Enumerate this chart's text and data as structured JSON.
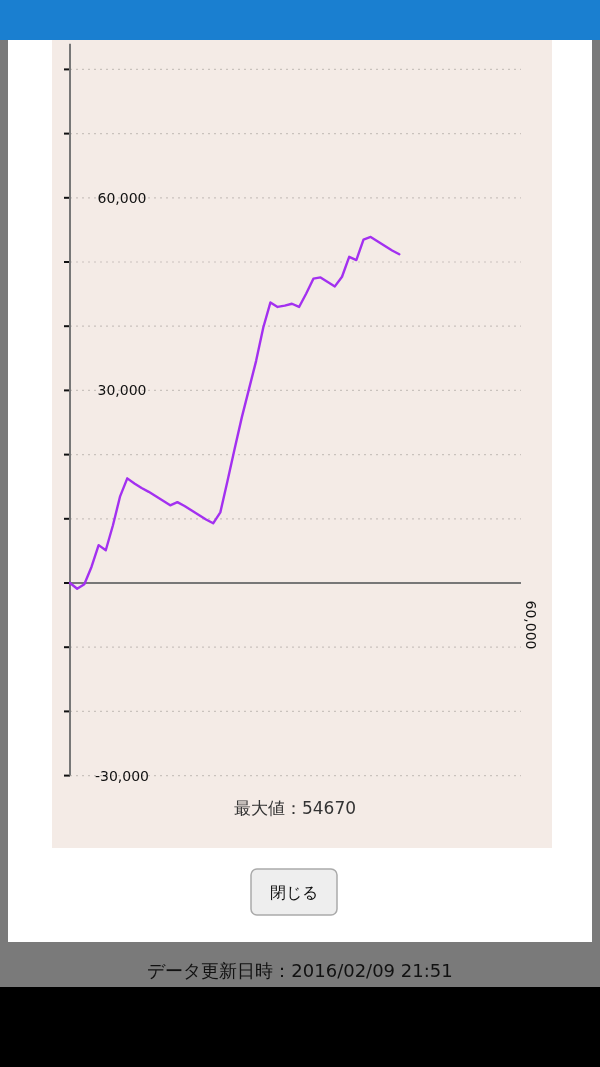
{
  "chart_data": {
    "type": "line",
    "categories": [
      null,
      null,
      null,
      null,
      null,
      null,
      null,
      null,
      null,
      null,
      null,
      null,
      null,
      null,
      null,
      null,
      null,
      null,
      null,
      null,
      null,
      null,
      null,
      null,
      null,
      null,
      null,
      null,
      null,
      null,
      null,
      null,
      null,
      null,
      null,
      null,
      null,
      null,
      null,
      null,
      null,
      null,
      null,
      null,
      null,
      null,
      null,
      null,
      null,
      null,
      null,
      null,
      null,
      null,
      null,
      null,
      null,
      null,
      null,
      null,
      null,
      null,
      null,
      null
    ],
    "series": [
      {
        "color": "#a330f0",
        "values": [
          0,
          -900,
          -200,
          2500,
          5900,
          5100,
          9000,
          13500,
          16300,
          15500,
          14800,
          14200,
          13500,
          12800,
          12100,
          12600,
          12000,
          11300,
          10600,
          9900,
          9300,
          11000,
          15900,
          20900,
          25800,
          30200,
          34600,
          39800,
          43700,
          43000,
          43200,
          43500,
          43000,
          45100,
          47400,
          47600,
          46900,
          46200,
          47700,
          50800,
          50300,
          53500,
          53900,
          53200,
          52500,
          51800,
          51200,
          null,
          null,
          null,
          null,
          null,
          null,
          null,
          null,
          null,
          null,
          null,
          null,
          null,
          null,
          null,
          null,
          null
        ]
      }
    ],
    "ylim": [
      -30000,
      84000
    ],
    "yticks": [
      {
        "value": -30000,
        "label": "-30,000"
      },
      {
        "value": -20000,
        "label": null
      },
      {
        "value": -10000,
        "label": null
      },
      {
        "value": 0,
        "label": null
      },
      {
        "value": 10000,
        "label": null
      },
      {
        "value": 20000,
        "label": null
      },
      {
        "value": 30000,
        "label": "30,000"
      },
      {
        "value": 40000,
        "label": null
      },
      {
        "value": 50000,
        "label": null
      },
      {
        "value": 60000,
        "label": "60,000"
      },
      {
        "value": 70000,
        "label": null
      },
      {
        "value": 80000,
        "label": null
      }
    ],
    "grid": "y",
    "marker": "none",
    "line_style": "solid",
    "annotations": [
      "最大値：54670",
      "閉じる",
      "データ更新日時：2016/02/09 21:51",
      "60,000"
    ]
  }
}
